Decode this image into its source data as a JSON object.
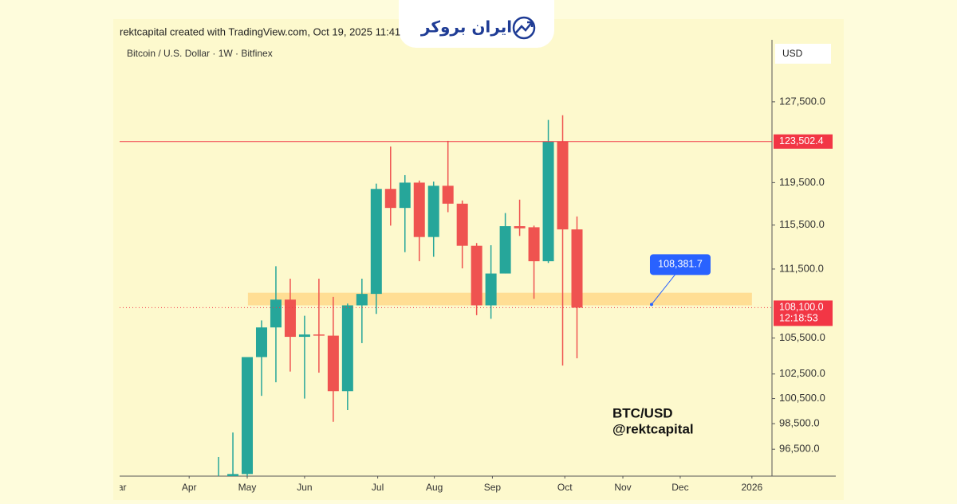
{
  "chart_data": {
    "type": "candlestick",
    "watermark": "rektcapital created with TradingView.com, Oct 19, 2025 11:41",
    "title": "Bitcoin / U.S. Dollar · 1W · Bitfinex",
    "logo": "ایران بروکر",
    "y_axis_label": "USD",
    "annotations": [
      "BTC/USD",
      "@rektcapital"
    ],
    "log_scale": true,
    "grid": false,
    "up_color": "#26a69a",
    "down_color": "#ef5350",
    "categories": [
      null,
      null,
      null,
      null,
      null,
      null,
      null,
      null,
      null,
      null,
      null,
      null,
      null,
      null,
      null,
      null,
      null,
      null,
      null,
      null,
      null,
      null,
      null,
      null,
      null,
      null
    ],
    "open": [
      94200,
      94000,
      94600,
      103900,
      106400,
      108800,
      105600,
      105800,
      105700,
      101100,
      108300,
      109300,
      118900,
      117100,
      119500,
      114400,
      119200,
      117500,
      113600,
      108300,
      111100,
      115400,
      115300,
      112200,
      123500,
      115100
    ],
    "high": [
      95900,
      97800,
      103900,
      107000,
      111750,
      110640,
      107400,
      110640,
      109040,
      108460,
      110640,
      119400,
      123010,
      120220,
      119700,
      119600,
      123570,
      117800,
      113850,
      113650,
      116620,
      117880,
      115450,
      125660,
      126130,
      116300
    ],
    "low": [
      93800,
      93500,
      94000,
      100720,
      101820,
      102700,
      100500,
      102610,
      98650,
      99580,
      105070,
      107560,
      115450,
      113020,
      112200,
      112600,
      116700,
      111560,
      107450,
      107140,
      111100,
      114500,
      108870,
      112050,
      103200,
      103800
    ],
    "close": [
      94350,
      94600,
      103900,
      106400,
      108800,
      105600,
      105800,
      105700,
      101100,
      108300,
      109300,
      118900,
      117100,
      119500,
      114400,
      119200,
      117500,
      113600,
      108300,
      111100,
      115400,
      115200,
      112200,
      123500,
      115100,
      108100
    ],
    "xlim": [
      -6.9,
      38.6
    ],
    "xticks": [
      {
        "value": -7,
        "label": "Mar"
      },
      {
        "value": -2.05,
        "label": "Apr"
      },
      {
        "value": 2,
        "label": "May"
      },
      {
        "value": 6,
        "label": "Jun"
      },
      {
        "value": 11.1,
        "label": "Jul"
      },
      {
        "value": 15.05,
        "label": "Aug"
      },
      {
        "value": 19.1,
        "label": "Sep"
      },
      {
        "value": 24.15,
        "label": "Oct"
      },
      {
        "value": 28.2,
        "label": "Nov"
      },
      {
        "value": 32.2,
        "label": "Dec"
      },
      {
        "value": 37.2,
        "label": "2026"
      }
    ],
    "ylim": [
      94440,
      134000
    ],
    "yticks": [
      {
        "value": 127500,
        "label": "127,500.0"
      },
      {
        "value": 119500,
        "label": "119,500.0"
      },
      {
        "value": 115500,
        "label": "115,500.0"
      },
      {
        "value": 111500,
        "label": "111,500.0"
      },
      {
        "value": 105500,
        "label": "105,500.0"
      },
      {
        "value": 102500,
        "label": "102,500.0"
      },
      {
        "value": 100500,
        "label": "100,500.0"
      },
      {
        "value": 98500,
        "label": "98,500.0"
      },
      {
        "value": 96500,
        "label": "96,500.0"
      }
    ],
    "price_lines": [
      {
        "value": 123502.4,
        "label": "123,502.4",
        "color": "#f23645"
      },
      {
        "value": 108100,
        "label": "108,100.0",
        "timer": "12:18:53",
        "color": "#f23645"
      }
    ],
    "zone": {
      "low": 108300,
      "high": 109400,
      "x": [
        2.05,
        37.2
      ],
      "color": "#ffd98a"
    },
    "callout": {
      "value": 108381.7,
      "label": "108,381.7",
      "x": 30.2,
      "color": "#2962ff"
    }
  }
}
